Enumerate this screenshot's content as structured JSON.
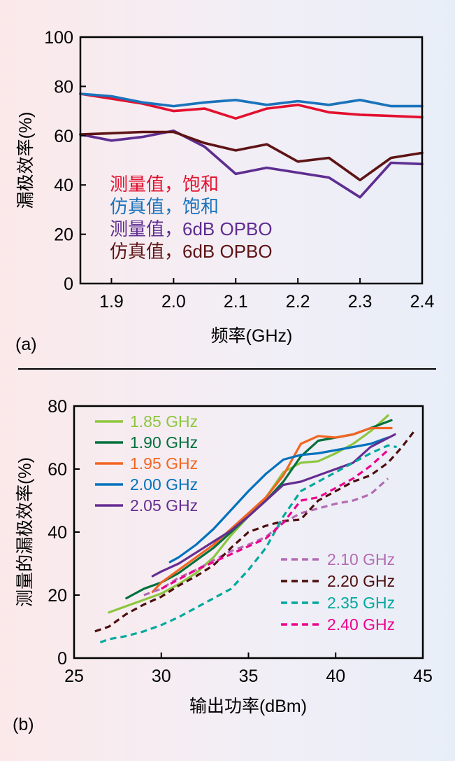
{
  "chart_data": [
    {
      "type": "line",
      "panel_label": "(a)",
      "xlabel": "频率(GHz)",
      "ylabel": "漏极效率(%)",
      "xlim": [
        1.85,
        2.4
      ],
      "ylim": [
        0,
        100
      ],
      "xticks": [
        "1.9",
        "2.0",
        "2.1",
        "2.2",
        "2.3",
        "2.4"
      ],
      "yticks": [
        "0",
        "20",
        "40",
        "60",
        "80",
        "100"
      ],
      "legend_position": "inside-lower-left",
      "grid": false,
      "series": [
        {
          "name": "测量值，饱和",
          "color": "#e3102e",
          "x": [
            1.85,
            1.9,
            1.95,
            2.0,
            2.05,
            2.1,
            2.15,
            2.2,
            2.25,
            2.3,
            2.35,
            2.4
          ],
          "y": [
            77,
            75,
            73,
            70,
            71,
            67,
            71,
            72.5,
            69.5,
            68.5,
            68,
            67.5
          ]
        },
        {
          "name": "仿真值，饱和",
          "color": "#1a73bb",
          "x": [
            1.85,
            1.9,
            1.95,
            2.0,
            2.05,
            2.1,
            2.15,
            2.2,
            2.25,
            2.3,
            2.35,
            2.4
          ],
          "y": [
            77,
            76,
            73.5,
            72,
            73.5,
            74.5,
            72.5,
            74,
            72.5,
            74.5,
            72,
            72
          ]
        },
        {
          "name": "测量值，6dB OPBO",
          "color": "#5e2d91",
          "x": [
            1.85,
            1.9,
            1.95,
            2.0,
            2.05,
            2.1,
            2.15,
            2.2,
            2.25,
            2.3,
            2.35,
            2.4
          ],
          "y": [
            60.5,
            58,
            59.5,
            62,
            55.5,
            44.5,
            47,
            45,
            43,
            35,
            49,
            48.5
          ]
        },
        {
          "name": "仿真值，6dB OPBO",
          "color": "#5e1416",
          "x": [
            1.85,
            1.9,
            1.95,
            2.0,
            2.05,
            2.1,
            2.15,
            2.2,
            2.25,
            2.3,
            2.35,
            2.4
          ],
          "y": [
            60.5,
            61,
            61.5,
            61.5,
            57,
            54,
            56.5,
            49.5,
            51,
            42,
            51,
            53
          ]
        }
      ]
    },
    {
      "type": "line",
      "panel_label": "(b)",
      "xlabel": "输出功率(dBm)",
      "ylabel": "测量的漏极效率(%)",
      "xlim": [
        25,
        45
      ],
      "ylim": [
        0,
        80
      ],
      "xticks": [
        "25",
        "30",
        "35",
        "40",
        "45"
      ],
      "yticks": [
        "0",
        "20",
        "40",
        "60",
        "80"
      ],
      "legend_position": "two groups: upper-left (solid), lower-right (dashed)",
      "grid": false,
      "series": [
        {
          "name": "1.85 GHz",
          "color": "#8dc63f",
          "dash": false,
          "x": [
            27,
            28,
            29,
            30,
            31,
            32,
            33,
            34,
            35,
            36,
            37,
            38,
            39,
            40,
            41,
            42,
            43
          ],
          "y": [
            14.5,
            16.5,
            18.5,
            20.5,
            23.5,
            27,
            32,
            39,
            45,
            51,
            59,
            62,
            62.5,
            65,
            68,
            72,
            77
          ]
        },
        {
          "name": "1.90 GHz",
          "color": "#00703c",
          "dash": false,
          "x": [
            28,
            29,
            30,
            31,
            32,
            33,
            34,
            35,
            36,
            37,
            38,
            39,
            40,
            41,
            42,
            43.2
          ],
          "y": [
            19,
            22,
            24,
            27,
            31,
            35,
            40,
            45,
            50,
            56,
            64,
            69,
            70,
            71,
            73,
            75.5
          ]
        },
        {
          "name": "1.95 GHz",
          "color": "#f26522",
          "dash": false,
          "x": [
            29.5,
            30,
            31,
            32,
            33,
            34,
            35,
            36,
            37,
            38,
            39,
            40,
            41,
            42,
            43.2
          ],
          "y": [
            21,
            24,
            28,
            32,
            36,
            41,
            46,
            51,
            58,
            68,
            70.5,
            70,
            71,
            73,
            73
          ]
        },
        {
          "name": "2.00 GHz",
          "color": "#0072bc",
          "dash": false,
          "x": [
            30.5,
            31,
            32,
            33,
            34,
            35,
            36,
            37,
            38,
            39,
            40,
            41,
            42,
            43
          ],
          "y": [
            30.5,
            32,
            36,
            41,
            47,
            53,
            58.5,
            63,
            64.5,
            65,
            66,
            67,
            68,
            70
          ]
        },
        {
          "name": "2.05 GHz",
          "color": "#662d91",
          "dash": false,
          "x": [
            29.5,
            30,
            31,
            32,
            33,
            34,
            35,
            36,
            37,
            38,
            39,
            40,
            41,
            42,
            43.4
          ],
          "y": [
            26,
            27.5,
            30,
            33.5,
            37,
            40.5,
            45,
            50,
            55,
            56,
            58,
            60,
            62,
            67,
            71
          ]
        },
        {
          "name": "2.10 GHz",
          "color": "#b36bb3",
          "dash": true,
          "x": [
            29,
            30,
            31,
            32,
            33,
            34,
            35,
            36,
            37,
            38,
            39,
            40,
            41,
            42,
            43
          ],
          "y": [
            20,
            22,
            25.5,
            28,
            31,
            34,
            36,
            38.5,
            43,
            46,
            47.5,
            49,
            50,
            52,
            57
          ]
        },
        {
          "name": "2.20 GHz",
          "color": "#4d0d0d",
          "dash": true,
          "x": [
            26.2,
            27,
            28,
            29,
            30,
            31,
            32,
            33,
            34,
            35,
            36,
            37,
            38,
            39,
            40,
            41,
            42,
            43,
            43.8,
            44.5
          ],
          "y": [
            8.5,
            10,
            14,
            17,
            19.5,
            23,
            26,
            29.5,
            35,
            40,
            42,
            43.5,
            44,
            50,
            53,
            56,
            58,
            62,
            67,
            72
          ]
        },
        {
          "name": "2.35 GHz",
          "color": "#00a99d",
          "dash": true,
          "x": [
            26.5,
            27,
            28,
            29,
            30,
            31,
            32,
            33,
            34,
            35,
            36,
            37,
            38,
            39,
            40,
            41,
            42,
            43,
            43.5
          ],
          "y": [
            5,
            6,
            7,
            8.5,
            10.5,
            13,
            16,
            19,
            22,
            28,
            35,
            45,
            53,
            56,
            59,
            62,
            65,
            67.5,
            67
          ]
        },
        {
          "name": "2.40 GHz",
          "color": "#ec008c",
          "dash": true,
          "x": [
            30,
            31,
            32,
            33,
            34,
            35,
            36,
            37,
            38,
            39,
            40,
            41,
            42,
            43
          ],
          "y": [
            22,
            25,
            28,
            30.5,
            33,
            35.5,
            38,
            43,
            50,
            51,
            54,
            57,
            61,
            66
          ]
        }
      ]
    }
  ]
}
